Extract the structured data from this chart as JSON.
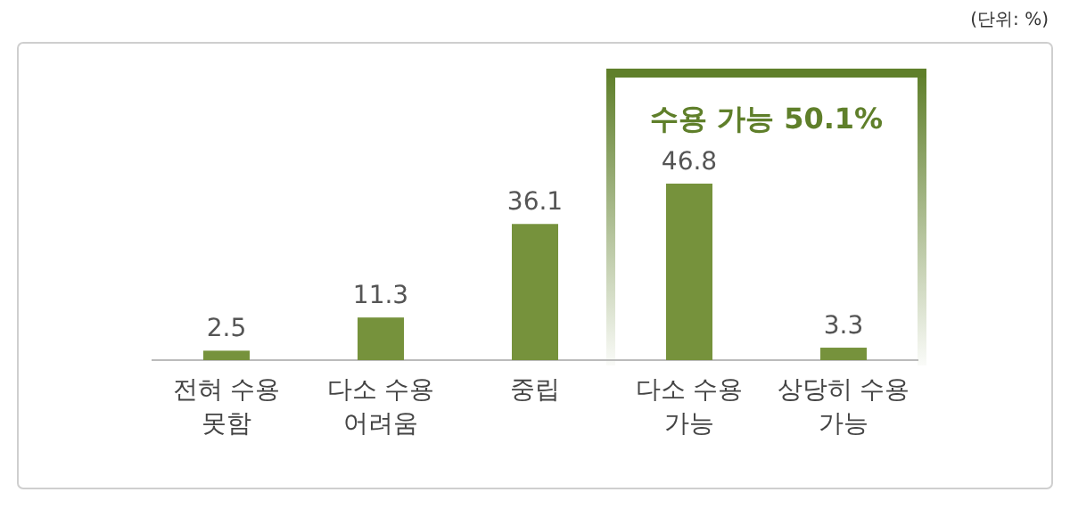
{
  "chart_data": {
    "type": "bar",
    "categories": [
      "전혀 수용 못함",
      "다소 수용 어려움",
      "중립",
      "다소 수용 가능",
      "상당히 수용 가능"
    ],
    "values": [
      2.5,
      11.3,
      36.1,
      46.8,
      3.3
    ],
    "color": "#76923c",
    "data_labels": true,
    "annotations": [
      "수용 가능 50.1%",
      "(단위: %)"
    ]
  }
}
